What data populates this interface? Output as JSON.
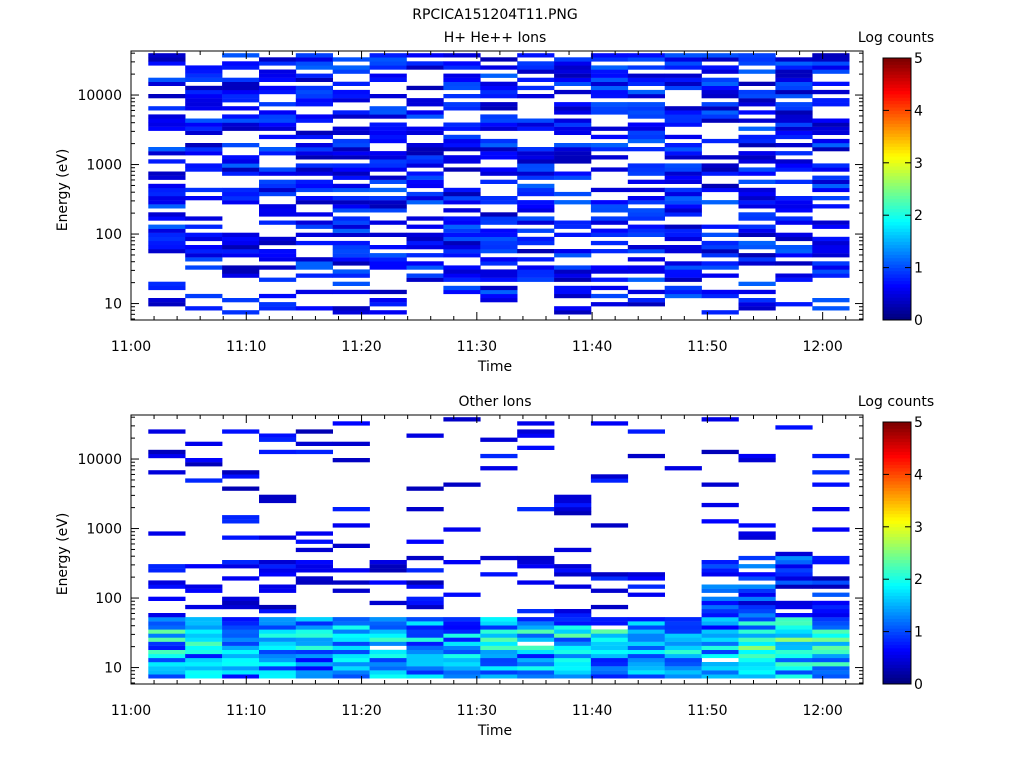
{
  "page": {
    "title": "RPCICA151204T11.PNG"
  },
  "chart_data": [
    {
      "type": "heatmap",
      "title": "H+ He++ Ions",
      "xlabel": "Time",
      "ylabel": "Energy (eV)",
      "x_ticks": [
        "11:00",
        "11:10",
        "11:20",
        "11:30",
        "11:40",
        "11:50",
        "12:00"
      ],
      "y_ticks": [
        "10",
        "100",
        "1000",
        "10000"
      ],
      "y_scale": "log",
      "colorbar": {
        "label": "Log counts",
        "ticks": [
          "0",
          "1",
          "2",
          "3",
          "4",
          "5"
        ],
        "range": [
          0,
          5
        ],
        "colormap": "jet"
      },
      "description": "Sparse dark-blue counts (log ~0.1-1.2) across all time bins and energies ~7 eV to ~40 keV",
      "seed": 11,
      "profile": "proton"
    },
    {
      "type": "heatmap",
      "title": "Other Ions",
      "xlabel": "Time",
      "ylabel": "Energy (eV)",
      "x_ticks": [
        "11:00",
        "11:10",
        "11:20",
        "11:30",
        "11:40",
        "11:50",
        "12:00"
      ],
      "y_ticks": [
        "10",
        "100",
        "1000",
        "10000"
      ],
      "y_scale": "log",
      "colorbar": {
        "label": "Log counts",
        "ticks": [
          "0",
          "1",
          "2",
          "3",
          "4",
          "5"
        ],
        "range": [
          0,
          5
        ],
        "colormap": "jet"
      },
      "description": "Elevated counts (log ~1-2.5) concentrated below ~60 eV; sparse high-energy counts",
      "seed": 29,
      "profile": "other"
    }
  ]
}
